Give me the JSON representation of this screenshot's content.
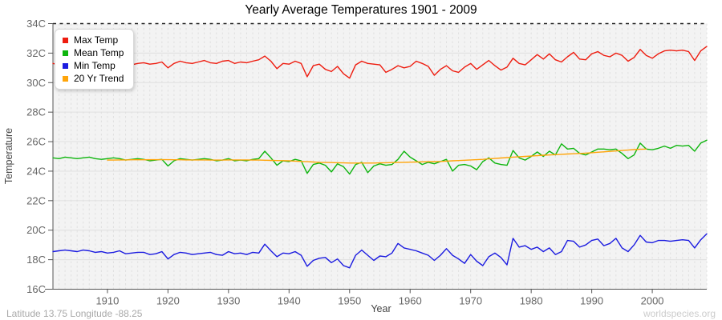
{
  "title": "Yearly Average Temperatures 1901 - 2009",
  "footer": {
    "left": "Latitude 13.75 Longitude -88.25",
    "right": "worldspecies.org"
  },
  "axes": {
    "x_label": "Year",
    "y_label": "Temperature",
    "y_ticks": [
      "34C",
      "32C",
      "30C",
      "28C",
      "26C",
      "24C",
      "22C",
      "20C",
      "18C",
      "16C"
    ],
    "x_ticks": [
      "1910",
      "1920",
      "1930",
      "1940",
      "1950",
      "1960",
      "1970",
      "1980",
      "1990",
      "2000"
    ]
  },
  "colors": {
    "plot_background": "#f3f3f3",
    "grid": "#e0e0e0",
    "axis": "#555555",
    "tick_text": "#666666",
    "top_dashed_line": "#222222"
  },
  "chart_data": {
    "type": "line",
    "title": "Yearly Average Temperatures 1901 - 2009",
    "xlabel": "Year",
    "ylabel": "Temperature",
    "x_start": 1901,
    "x_end": 2009,
    "ylim": [
      16,
      34
    ],
    "y_tick_step": 2,
    "grid": "vertical dashed line per year, horizontal line every 2C, black dashed line at 34C",
    "legend_position": "top-left",
    "series": [
      {
        "name": "Max Temp",
        "color": "#ee1c0f",
        "start_year": 1901,
        "values": [
          31.3,
          31.2,
          31.1,
          31.25,
          31.2,
          31.3,
          31.15,
          31.25,
          31.1,
          31.2,
          31.3,
          31.25,
          31.15,
          31.2,
          31.3,
          31.35,
          31.25,
          31.3,
          31.4,
          31.0,
          31.3,
          31.45,
          31.35,
          31.3,
          31.4,
          31.5,
          31.35,
          31.3,
          31.45,
          31.5,
          31.3,
          31.4,
          31.35,
          31.45,
          31.55,
          31.8,
          31.45,
          30.95,
          31.3,
          31.25,
          31.45,
          31.3,
          30.4,
          31.15,
          31.25,
          30.9,
          30.75,
          31.1,
          30.6,
          30.3,
          31.2,
          31.45,
          31.3,
          31.25,
          31.2,
          30.7,
          30.9,
          31.15,
          31.0,
          31.1,
          31.45,
          31.3,
          31.1,
          30.5,
          30.9,
          31.15,
          30.8,
          30.7,
          31.05,
          31.3,
          30.9,
          31.2,
          31.5,
          31.15,
          30.85,
          31.05,
          31.65,
          31.3,
          31.2,
          31.55,
          31.9,
          31.6,
          31.95,
          31.55,
          31.4,
          31.75,
          32.05,
          31.6,
          31.55,
          31.95,
          32.1,
          31.85,
          31.75,
          32.0,
          31.85,
          31.45,
          31.7,
          32.25,
          31.85,
          31.65,
          31.95,
          32.15,
          32.2,
          32.15,
          32.2,
          32.1,
          31.5,
          32.15,
          32.45
        ]
      },
      {
        "name": "Mean Temp",
        "color": "#0eb50e",
        "start_year": 1901,
        "values": [
          24.9,
          24.85,
          24.95,
          24.9,
          24.85,
          24.9,
          24.95,
          24.85,
          24.8,
          24.85,
          24.9,
          24.85,
          24.75,
          24.8,
          24.85,
          24.8,
          24.7,
          24.75,
          24.8,
          24.35,
          24.7,
          24.85,
          24.8,
          24.75,
          24.8,
          24.85,
          24.8,
          24.7,
          24.75,
          24.85,
          24.7,
          24.75,
          24.7,
          24.8,
          24.85,
          25.35,
          24.9,
          24.4,
          24.7,
          24.65,
          24.8,
          24.7,
          23.85,
          24.45,
          24.55,
          24.4,
          23.95,
          24.5,
          24.3,
          23.8,
          24.45,
          24.6,
          23.9,
          24.35,
          24.5,
          24.4,
          24.45,
          24.8,
          25.35,
          24.95,
          24.7,
          24.45,
          24.6,
          24.5,
          24.65,
          24.8,
          24.0,
          24.4,
          24.45,
          24.35,
          24.1,
          24.65,
          24.9,
          24.55,
          24.45,
          24.4,
          25.4,
          24.9,
          24.75,
          25.0,
          25.3,
          25.0,
          25.35,
          25.1,
          25.85,
          25.5,
          25.55,
          25.2,
          25.1,
          25.3,
          25.5,
          25.5,
          25.45,
          25.5,
          25.2,
          24.85,
          25.1,
          25.9,
          25.5,
          25.45,
          25.55,
          25.7,
          25.55,
          25.75,
          25.7,
          25.75,
          25.35,
          25.9,
          26.1
        ]
      },
      {
        "name": "Min Temp",
        "color": "#1b1be0",
        "start_year": 1901,
        "values": [
          18.55,
          18.6,
          18.65,
          18.6,
          18.55,
          18.65,
          18.6,
          18.5,
          18.55,
          18.45,
          18.5,
          18.6,
          18.4,
          18.45,
          18.5,
          18.5,
          18.35,
          18.4,
          18.55,
          18.05,
          18.35,
          18.5,
          18.45,
          18.35,
          18.4,
          18.45,
          18.5,
          18.35,
          18.3,
          18.55,
          18.4,
          18.45,
          18.35,
          18.5,
          18.45,
          19.05,
          18.6,
          18.2,
          18.45,
          18.4,
          18.55,
          18.3,
          17.55,
          17.95,
          18.1,
          18.15,
          17.8,
          18.05,
          17.6,
          17.45,
          18.3,
          18.65,
          18.3,
          17.95,
          18.25,
          18.2,
          18.45,
          19.1,
          18.8,
          18.7,
          18.6,
          18.45,
          18.3,
          17.95,
          18.3,
          18.75,
          18.3,
          18.05,
          17.75,
          18.35,
          17.9,
          17.6,
          18.2,
          18.45,
          18.15,
          17.65,
          19.45,
          18.85,
          18.95,
          18.7,
          18.85,
          18.55,
          18.8,
          18.35,
          18.55,
          19.3,
          19.25,
          18.85,
          19.0,
          19.3,
          19.4,
          18.95,
          19.1,
          19.45,
          18.8,
          18.55,
          19.0,
          19.65,
          19.2,
          19.15,
          19.3,
          19.3,
          19.25,
          19.3,
          19.35,
          19.3,
          18.8,
          19.35,
          19.75
        ]
      },
      {
        "name": "20 Yr Trend",
        "color": "#ffa50a",
        "start_year": 1910,
        "values": [
          24.75,
          24.75,
          24.76,
          24.76,
          24.77,
          24.77,
          24.77,
          24.78,
          24.78,
          24.78,
          24.78,
          24.77,
          24.77,
          24.76,
          24.76,
          24.76,
          24.76,
          24.75,
          24.75,
          24.75,
          24.76,
          24.76,
          24.76,
          24.76,
          24.75,
          24.75,
          24.74,
          24.73,
          24.72,
          24.71,
          24.7,
          24.68,
          24.66,
          24.64,
          24.62,
          24.6,
          24.59,
          24.58,
          24.57,
          24.56,
          24.55,
          24.55,
          24.55,
          24.55,
          24.55,
          24.56,
          24.57,
          24.58,
          24.59,
          24.6,
          24.61,
          24.62,
          24.63,
          24.64,
          24.65,
          24.66,
          24.68,
          24.7,
          24.72,
          24.74,
          24.76,
          24.78,
          24.8,
          24.83,
          24.86,
          24.89,
          24.92,
          24.95,
          24.98,
          25.0,
          25.02,
          25.05,
          25.08,
          25.1,
          25.12,
          25.14,
          25.16,
          25.18,
          25.2,
          25.22,
          25.25,
          25.28,
          25.31,
          25.34,
          25.37,
          25.4,
          25.43,
          25.46,
          25.48,
          25.5
        ]
      }
    ]
  }
}
